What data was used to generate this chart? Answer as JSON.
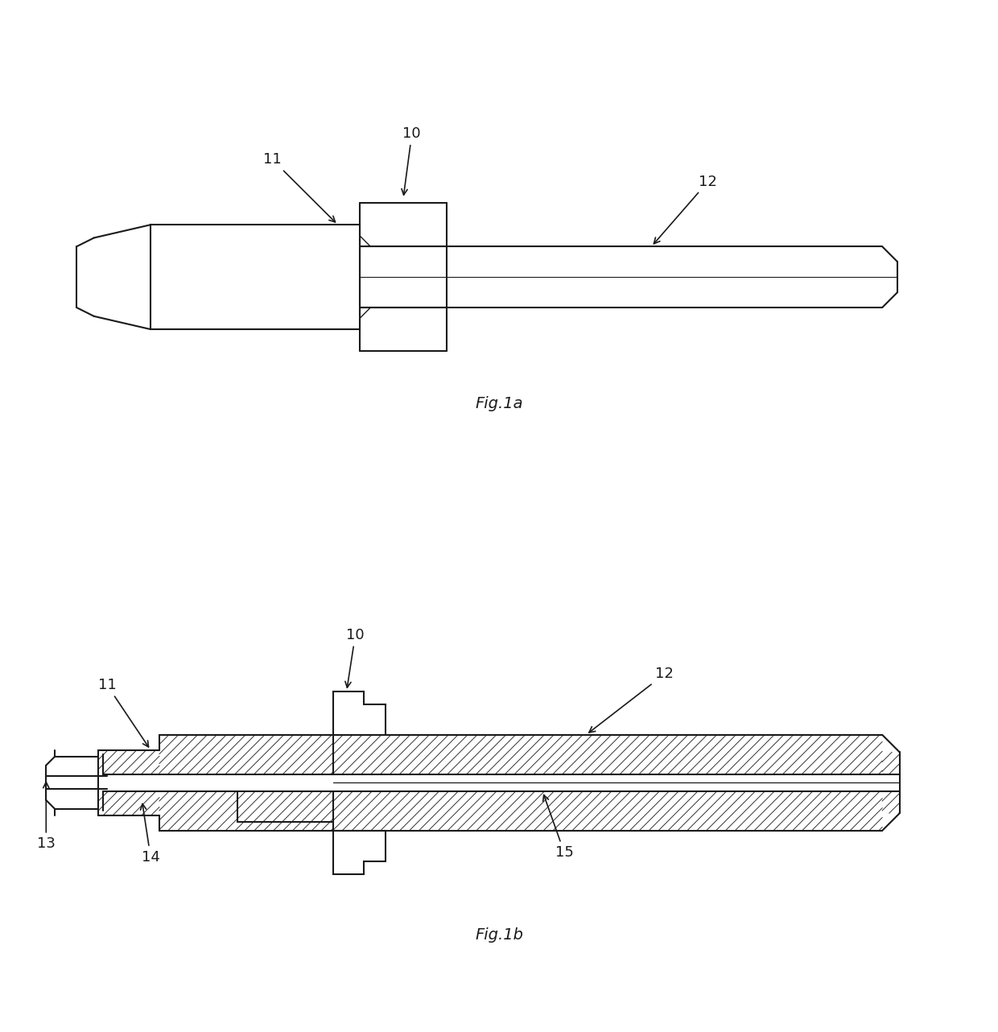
{
  "bg_color": "#ffffff",
  "line_color": "#1a1a1a",
  "fig_width": 12.4,
  "fig_height": 12.82,
  "fig1a_label": "Fig.1a",
  "fig1b_label": "Fig.1b"
}
